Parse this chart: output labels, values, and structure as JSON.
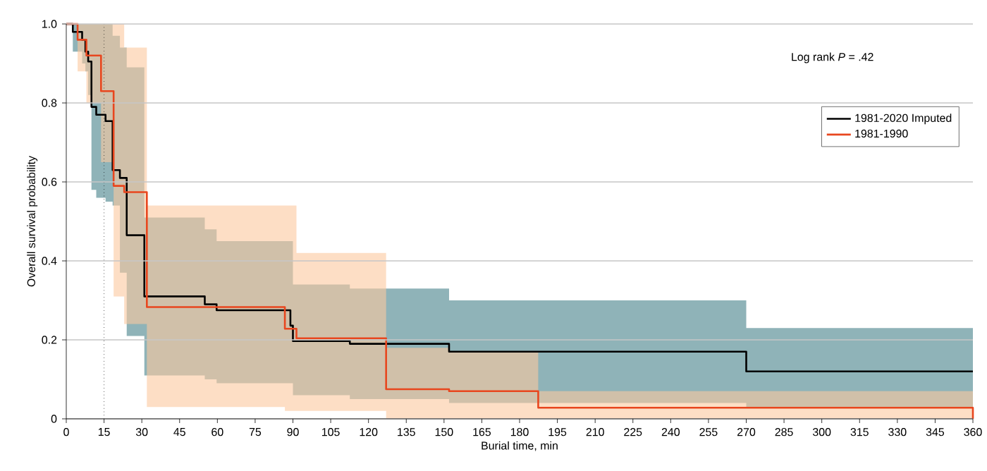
{
  "chart_data": {
    "type": "step",
    "xlabel": "Burial time, min",
    "ylabel": "Overall survival probability",
    "annotations": [
      "Log rank *P* = .42"
    ],
    "xlim": [
      0,
      360
    ],
    "xticks": [
      0,
      15,
      30,
      45,
      60,
      75,
      90,
      105,
      120,
      135,
      150,
      165,
      180,
      195,
      210,
      225,
      240,
      255,
      270,
      285,
      300,
      315,
      330,
      345,
      360
    ],
    "ylim": [
      0,
      1
    ],
    "yticks": [
      0,
      0.2,
      0.4,
      0.6,
      0.8,
      {
        "value": 1,
        "label": "1.0"
      }
    ],
    "grid": "y",
    "legend": "right",
    "ref_lines": [
      {
        "axis": "x",
        "value": 15,
        "line_style": "dotted",
        "color": "#000000"
      }
    ],
    "series": [
      {
        "name": "1981-2020 Imputed",
        "color": "#000000",
        "x": [
          0,
          2.6,
          6.3,
          7.6,
          8.7,
          10,
          11.9,
          15.6,
          18.4,
          21.3,
          24,
          31,
          55,
          59.7,
          89,
          90,
          112.6,
          152,
          270,
          360
        ],
        "values": [
          1,
          0.98,
          0.96,
          0.93,
          0.905,
          0.79,
          0.77,
          0.754,
          0.63,
          0.61,
          0.465,
          0.31,
          0.29,
          0.275,
          0.236,
          0.197,
          0.19,
          0.17,
          0.12,
          0.12
        ],
        "upper": [
          1,
          1,
          1,
          1,
          1,
          1,
          1,
          1,
          0.97,
          0.94,
          0.89,
          0.51,
          0.48,
          0.45,
          0.45,
          0.34,
          0.33,
          0.3,
          0.23,
          0.23
        ],
        "lower": [
          1,
          0.93,
          0.9,
          0.88,
          0.82,
          0.58,
          0.56,
          0.55,
          0.54,
          0.37,
          0.21,
          0.11,
          0.1,
          0.09,
          0.09,
          0.06,
          0.05,
          0.04,
          0.03,
          0.03
        ]
      },
      {
        "name": "1981-1990",
        "color": "#e8461e",
        "x": [
          0,
          4.5,
          8,
          13.8,
          18.8,
          23,
          32,
          86.8,
          91.4,
          127,
          152,
          187.4,
          360
        ],
        "values": [
          1,
          0.96,
          0.92,
          0.83,
          0.59,
          0.574,
          0.283,
          0.228,
          0.204,
          0.075,
          0.07,
          0.028,
          0
        ],
        "upper": [
          1,
          1,
          1,
          1,
          1,
          0.94,
          0.54,
          0.54,
          0.42,
          0.18,
          0.17,
          0.07,
          0.07
        ],
        "lower": [
          1,
          0.88,
          0.8,
          0.65,
          0.31,
          0.24,
          0.03,
          0.02,
          0.02,
          0,
          0,
          0,
          0
        ]
      }
    ]
  }
}
